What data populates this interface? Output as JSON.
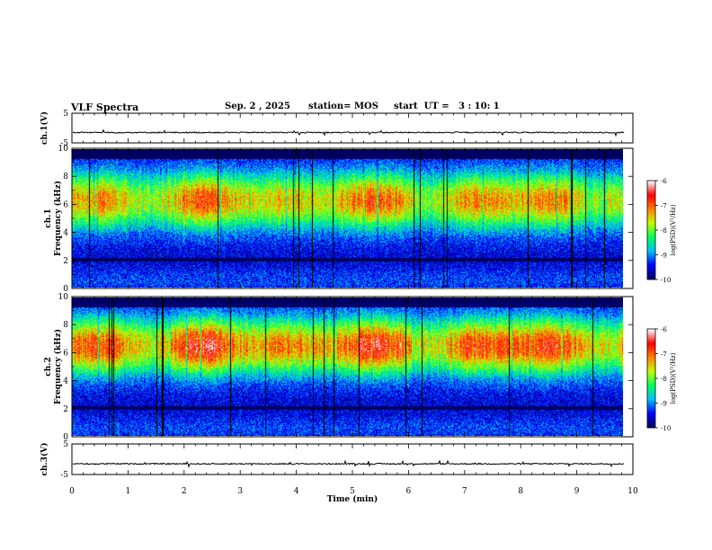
{
  "header": {
    "title": "VLF Spectra",
    "date": "Sep. 2 , 2025",
    "station": "station= MOS",
    "start": "start  UT =   3 : 10: 1"
  },
  "colorbar_label": "log(PSD)(V²/Hz)",
  "chart_data": [
    {
      "type": "line",
      "name": "ch1-voltage",
      "ylabel": "ch.1(V)",
      "ylim": [
        -5,
        5
      ],
      "yticks": [
        "5",
        "-5"
      ],
      "xlim": [
        0,
        10
      ],
      "level": -1.5
    },
    {
      "type": "heatmap",
      "name": "ch1-spectrogram",
      "ylabel": "ch.1\nFrequency (kHz)",
      "ylabel_line1": "ch.1",
      "ylabel_line2": "Frequency (kHz)",
      "ylim": [
        0,
        10
      ],
      "yticks": [
        "0",
        "2",
        "4",
        "6",
        "8",
        "10"
      ],
      "xlim": [
        0,
        9.85
      ],
      "colorbar": {
        "min": -10,
        "max": -6,
        "ticks": [
          "-6",
          "-7",
          "-8",
          "-9",
          "-10"
        ],
        "label": "log(PSD)(V²/Hz)"
      },
      "band_center_khz": 6.3,
      "peak_level": -6.8
    },
    {
      "type": "heatmap",
      "name": "ch2-spectrogram",
      "ylabel": "ch.2\nFrequency (kHz)",
      "ylabel_line1": "ch.2",
      "ylabel_line2": "Frequency (kHz)",
      "ylim": [
        0,
        10
      ],
      "yticks": [
        "0",
        "2",
        "4",
        "6",
        "8",
        "10"
      ],
      "xlim": [
        0,
        9.85
      ],
      "colorbar": {
        "min": -10,
        "max": -6,
        "ticks": [
          "-6",
          "-7",
          "-8",
          "-9",
          "-10"
        ],
        "label": "log(PSD)(V²/Hz)"
      },
      "band_center_khz": 6.5,
      "peak_level": -6.4
    },
    {
      "type": "line",
      "name": "ch3-voltage",
      "ylabel": "ch.3(V)",
      "ylim": [
        -5,
        5
      ],
      "yticks": [
        "5",
        "-5"
      ],
      "xlim": [
        0,
        10
      ],
      "level": -1.5
    }
  ],
  "x_axis": {
    "label": "Time (min)",
    "range": [
      0,
      10
    ],
    "ticks": [
      "0",
      "1",
      "2",
      "3",
      "4",
      "5",
      "6",
      "7",
      "8",
      "9",
      "10"
    ]
  },
  "colors": {
    "colormap": [
      "#000060",
      "#0000ff",
      "#00c0ff",
      "#00ff60",
      "#c0ff00",
      "#ff8000",
      "#ff0000",
      "#ffffff"
    ]
  }
}
